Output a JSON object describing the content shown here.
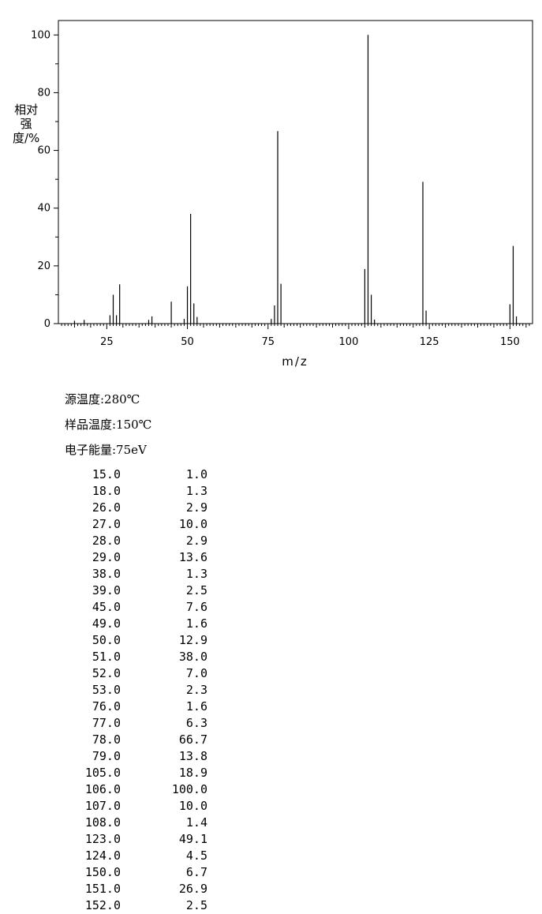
{
  "chart_data": {
    "type": "bar",
    "xlabel": "m/z",
    "ylabel": "相对强度/%",
    "xlim": [
      10,
      157
    ],
    "ylim": [
      0,
      105
    ],
    "xticks": [
      25,
      50,
      75,
      100,
      125,
      150
    ],
    "yticks": [
      0,
      20,
      40,
      60,
      80,
      100
    ],
    "grid": false,
    "x": [
      15,
      18,
      26,
      27,
      28,
      29,
      38,
      39,
      45,
      49,
      50,
      51,
      52,
      53,
      76,
      77,
      78,
      79,
      105,
      106,
      107,
      108,
      123,
      124,
      150,
      151,
      152
    ],
    "values": [
      1.0,
      1.3,
      2.9,
      10.0,
      2.9,
      13.6,
      1.3,
      2.5,
      7.6,
      1.6,
      12.9,
      38.0,
      7.0,
      2.3,
      1.6,
      6.3,
      66.7,
      13.8,
      18.9,
      100.0,
      10.0,
      1.4,
      49.1,
      4.5,
      6.7,
      26.9,
      2.5
    ]
  },
  "conditions": [
    "源温度:280℃",
    "样品温度:150℃",
    "电子能量:75eV"
  ],
  "peak_table": [
    [
      "15.0",
      "1.0"
    ],
    [
      "18.0",
      "1.3"
    ],
    [
      "26.0",
      "2.9"
    ],
    [
      "27.0",
      "10.0"
    ],
    [
      "28.0",
      "2.9"
    ],
    [
      "29.0",
      "13.6"
    ],
    [
      "38.0",
      "1.3"
    ],
    [
      "39.0",
      "2.5"
    ],
    [
      "45.0",
      "7.6"
    ],
    [
      "49.0",
      "1.6"
    ],
    [
      "50.0",
      "12.9"
    ],
    [
      "51.0",
      "38.0"
    ],
    [
      "52.0",
      "7.0"
    ],
    [
      "53.0",
      "2.3"
    ],
    [
      "76.0",
      "1.6"
    ],
    [
      "77.0",
      "6.3"
    ],
    [
      "78.0",
      "66.7"
    ],
    [
      "79.0",
      "13.8"
    ],
    [
      "105.0",
      "18.9"
    ],
    [
      "106.0",
      "100.0"
    ],
    [
      "107.0",
      "10.0"
    ],
    [
      "108.0",
      "1.4"
    ],
    [
      "123.0",
      "49.1"
    ],
    [
      "124.0",
      "4.5"
    ],
    [
      "150.0",
      "6.7"
    ],
    [
      "151.0",
      "26.9"
    ],
    [
      "152.0",
      "2.5"
    ]
  ]
}
